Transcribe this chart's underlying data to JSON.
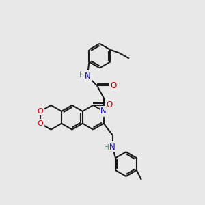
{
  "background_color": "#e8e8e8",
  "bond_color": "#1a1a1a",
  "atom_colors": {
    "N": "#1010bb",
    "O": "#cc0000",
    "H": "#5a8a8a",
    "C": "#1a1a1a"
  }
}
